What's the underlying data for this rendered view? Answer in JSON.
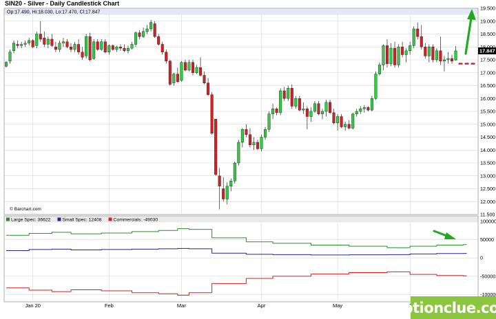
{
  "header": {
    "title": "SIN20 - Silver - Daily Candlestick Chart",
    "info": "Op:17.490, Hi:18.030, Lo:17.470, Cl:17.847",
    "credit": "© Barchart.com",
    "last_price_label": "17.847"
  },
  "legend": [
    {
      "label": "Large Spec: 36622",
      "color": "#2e8b2e"
    },
    {
      "label": "Small Spec: 12408",
      "color": "#23238f"
    },
    {
      "label": "Commercials: -49030",
      "color": "#d22222"
    }
  ],
  "watermark": "optionclue.com",
  "colors": {
    "up": "#2ecc40",
    "down": "#d42020",
    "grid": "#cfcfcf",
    "header_band": "#e4e8f5",
    "arrow": "#22a822",
    "last_price_line": "#e02020"
  },
  "chart_data": [
    {
      "type": "candlestick",
      "title": "SIN20 - Silver - Daily Candlestick Chart",
      "x_tick_labels": [
        {
          "label": "Jan 20",
          "index": 7
        },
        {
          "label": "Feb",
          "index": 27
        },
        {
          "label": "Mar",
          "index": 46
        },
        {
          "label": "Apr",
          "index": 67
        },
        {
          "label": "May",
          "index": 87
        },
        {
          "label": "J",
          "index": 106
        }
      ],
      "y_ticks": [
        "11.500",
        "12.000",
        "12.500",
        "13.000",
        "13.500",
        "14.000",
        "14.500",
        "15.000",
        "15.500",
        "16.000",
        "16.500",
        "17.000",
        "17.500",
        "18.000",
        "18.500",
        "19.000",
        "19.500"
      ],
      "ylim": [
        11.5,
        19.5
      ],
      "grid": true,
      "last_price": 17.847,
      "candles": [
        [
          17.25,
          17.45,
          17.2,
          17.4
        ],
        [
          17.45,
          17.9,
          17.35,
          17.8
        ],
        [
          17.85,
          18.25,
          17.75,
          18.15
        ],
        [
          18.1,
          18.25,
          17.95,
          18.05
        ],
        [
          18.05,
          18.2,
          17.95,
          18.1
        ],
        [
          18.1,
          18.25,
          18.0,
          18.15
        ],
        [
          18.15,
          18.35,
          18.05,
          18.25
        ],
        [
          18.25,
          18.3,
          17.95,
          18.0
        ],
        [
          18.05,
          18.6,
          17.95,
          18.5
        ],
        [
          18.5,
          19.0,
          18.2,
          18.3
        ],
        [
          18.35,
          18.6,
          18.0,
          18.1
        ],
        [
          18.1,
          18.4,
          17.95,
          18.3
        ],
        [
          18.3,
          18.5,
          18.0,
          18.05
        ],
        [
          18.0,
          18.2,
          17.8,
          17.9
        ],
        [
          17.9,
          18.25,
          17.8,
          18.15
        ],
        [
          18.15,
          18.35,
          18.0,
          18.2
        ],
        [
          18.2,
          18.3,
          17.95,
          18.0
        ],
        [
          18.0,
          18.15,
          17.8,
          17.9
        ],
        [
          17.9,
          18.2,
          17.8,
          18.1
        ],
        [
          18.1,
          18.3,
          17.7,
          17.8
        ],
        [
          17.8,
          18.0,
          17.5,
          17.6
        ],
        [
          17.65,
          18.5,
          17.55,
          18.4
        ],
        [
          18.4,
          18.55,
          17.45,
          17.5
        ],
        [
          17.55,
          18.3,
          17.5,
          18.2
        ],
        [
          18.2,
          18.3,
          17.85,
          17.9
        ],
        [
          17.9,
          18.3,
          17.85,
          18.2
        ],
        [
          18.2,
          18.3,
          17.75,
          17.8
        ],
        [
          17.8,
          18.1,
          17.7,
          18.05
        ],
        [
          18.05,
          18.1,
          17.85,
          17.9
        ],
        [
          17.9,
          18.05,
          17.8,
          18.0
        ],
        [
          18.0,
          18.1,
          17.85,
          17.95
        ],
        [
          17.95,
          18.1,
          17.8,
          17.85
        ],
        [
          17.85,
          18.05,
          17.75,
          17.95
        ],
        [
          17.95,
          18.2,
          17.9,
          18.1
        ],
        [
          18.1,
          18.6,
          18.0,
          18.55
        ],
        [
          18.55,
          18.65,
          18.3,
          18.4
        ],
        [
          18.4,
          18.75,
          18.35,
          18.6
        ],
        [
          18.6,
          18.85,
          18.5,
          18.7
        ],
        [
          18.7,
          19.05,
          18.6,
          18.95
        ],
        [
          18.9,
          19.0,
          18.35,
          18.4
        ],
        [
          18.4,
          18.5,
          18.05,
          18.1
        ],
        [
          18.1,
          18.2,
          17.7,
          17.8
        ],
        [
          17.8,
          17.9,
          17.35,
          17.45
        ],
        [
          17.45,
          17.5,
          16.5,
          16.55
        ],
        [
          16.6,
          17.0,
          16.5,
          16.95
        ],
        [
          16.95,
          17.2,
          16.6,
          16.65
        ],
        [
          16.7,
          17.45,
          16.65,
          17.4
        ],
        [
          17.4,
          17.5,
          17.05,
          17.1
        ],
        [
          17.1,
          17.5,
          17.05,
          17.4
        ],
        [
          17.4,
          17.5,
          16.9,
          17.0
        ],
        [
          17.0,
          17.3,
          16.95,
          17.2
        ],
        [
          17.2,
          17.6,
          16.85,
          16.9
        ],
        [
          16.9,
          17.05,
          16.55,
          16.6
        ],
        [
          16.6,
          16.8,
          16.1,
          16.15
        ],
        [
          16.15,
          16.25,
          14.6,
          14.65
        ],
        [
          15.2,
          15.2,
          13.0,
          13.05
        ],
        [
          13.0,
          13.3,
          11.7,
          12.6
        ],
        [
          12.5,
          12.95,
          12.0,
          12.1
        ],
        [
          12.1,
          12.75,
          11.9,
          12.6
        ],
        [
          12.6,
          12.9,
          12.4,
          12.8
        ],
        [
          12.8,
          13.55,
          12.7,
          13.5
        ],
        [
          13.5,
          14.4,
          13.4,
          14.3
        ],
        [
          14.3,
          14.85,
          14.1,
          14.8
        ],
        [
          14.8,
          15.0,
          14.5,
          14.6
        ],
        [
          14.6,
          14.85,
          14.1,
          14.2
        ],
        [
          14.2,
          14.5,
          14.0,
          14.3
        ],
        [
          14.3,
          14.4,
          14.0,
          14.05
        ],
        [
          14.05,
          14.6,
          13.95,
          14.5
        ],
        [
          14.5,
          14.9,
          14.4,
          14.8
        ],
        [
          14.8,
          15.5,
          14.7,
          15.4
        ],
        [
          15.4,
          15.8,
          15.2,
          15.6
        ],
        [
          15.6,
          15.65,
          15.35,
          15.45
        ],
        [
          15.45,
          16.4,
          15.35,
          16.3
        ],
        [
          16.3,
          16.45,
          15.9,
          16.0
        ],
        [
          16.0,
          16.5,
          15.9,
          16.4
        ],
        [
          16.4,
          16.55,
          15.6,
          15.7
        ],
        [
          15.7,
          16.1,
          15.6,
          16.0
        ],
        [
          16.0,
          16.1,
          15.5,
          15.55
        ],
        [
          15.55,
          15.85,
          15.4,
          15.6
        ],
        [
          15.6,
          15.7,
          14.8,
          15.3
        ],
        [
          15.3,
          15.65,
          15.1,
          15.5
        ],
        [
          15.5,
          15.9,
          15.45,
          15.8
        ],
        [
          15.8,
          15.9,
          15.35,
          15.4
        ],
        [
          15.4,
          15.6,
          15.2,
          15.5
        ],
        [
          15.5,
          15.95,
          15.3,
          15.85
        ],
        [
          15.85,
          15.95,
          15.4,
          15.45
        ],
        [
          15.45,
          15.6,
          15.0,
          15.05
        ],
        [
          15.05,
          15.4,
          14.75,
          15.3
        ],
        [
          15.3,
          15.4,
          14.85,
          14.9
        ],
        [
          14.9,
          15.1,
          14.75,
          15.0
        ],
        [
          15.0,
          15.15,
          14.8,
          14.85
        ],
        [
          14.85,
          15.45,
          14.8,
          15.4
        ],
        [
          15.4,
          15.6,
          15.3,
          15.5
        ],
        [
          15.5,
          15.7,
          15.4,
          15.6
        ],
        [
          15.6,
          15.75,
          15.45,
          15.65
        ],
        [
          15.65,
          15.7,
          15.5,
          15.55
        ],
        [
          15.55,
          16.1,
          15.5,
          16.0
        ],
        [
          16.0,
          17.05,
          15.95,
          16.95
        ],
        [
          16.95,
          17.4,
          16.9,
          17.3
        ],
        [
          17.3,
          18.1,
          17.1,
          18.05
        ],
        [
          18.05,
          18.3,
          17.2,
          17.35
        ],
        [
          17.35,
          18.15,
          17.25,
          17.95
        ],
        [
          17.95,
          18.2,
          17.2,
          17.3
        ],
        [
          17.3,
          18.1,
          17.2,
          18.0
        ],
        [
          18.0,
          18.2,
          17.6,
          17.7
        ],
        [
          17.7,
          17.95,
          17.4,
          17.85
        ],
        [
          17.85,
          18.2,
          17.7,
          18.05
        ],
        [
          18.05,
          18.8,
          17.95,
          18.7
        ],
        [
          18.7,
          18.95,
          18.3,
          18.4
        ],
        [
          18.4,
          18.85,
          17.9,
          18.0
        ],
        [
          18.0,
          18.15,
          17.55,
          17.65
        ],
        [
          17.65,
          18.1,
          17.4,
          18.0
        ],
        [
          18.0,
          18.1,
          17.4,
          17.5
        ],
        [
          17.5,
          17.95,
          17.4,
          17.85
        ],
        [
          17.85,
          18.4,
          17.3,
          17.45
        ],
        [
          17.45,
          17.65,
          17.05,
          17.5
        ],
        [
          17.5,
          17.8,
          17.35,
          17.55
        ],
        [
          17.55,
          17.7,
          17.35,
          17.45
        ],
        [
          17.49,
          18.03,
          17.47,
          17.847
        ]
      ],
      "annotation": "green arrow pointing up at the right edge; dashed red line at the last price"
    },
    {
      "type": "line",
      "title": "",
      "y_ticks": [
        "100000",
        "50000",
        "0",
        "-50000",
        "-100000"
      ],
      "ylim": [
        -120000,
        115000
      ],
      "grid": true,
      "series": [
        {
          "name": "Large Spec: 36622",
          "color": "#2e8b2e",
          "x": [
            0,
            6,
            12,
            17,
            25,
            33,
            40,
            45,
            48,
            54,
            63,
            70,
            80,
            90,
            100,
            106,
            113,
            120
          ],
          "values": [
            62000,
            67000,
            70000,
            66000,
            68000,
            72000,
            75000,
            80000,
            78000,
            55000,
            44000,
            40000,
            35000,
            32000,
            28000,
            32000,
            35000,
            36622
          ]
        },
        {
          "name": "Small Spec: 12408",
          "color": "#23238f",
          "x": [
            0,
            6,
            12,
            17,
            25,
            33,
            40,
            45,
            48,
            54,
            63,
            70,
            80,
            90,
            100,
            106,
            113,
            120
          ],
          "values": [
            20000,
            23000,
            24000,
            22000,
            23000,
            24000,
            25000,
            26000,
            25000,
            13000,
            10000,
            9000,
            8000,
            8500,
            9000,
            11000,
            12000,
            12408
          ]
        },
        {
          "name": "Commercials: -49030",
          "color": "#d22222",
          "x": [
            0,
            6,
            12,
            17,
            25,
            33,
            40,
            45,
            48,
            54,
            63,
            70,
            80,
            90,
            100,
            106,
            113,
            120
          ],
          "values": [
            -82000,
            -88000,
            -92000,
            -87000,
            -90000,
            -95000,
            -98000,
            -102000,
            -95000,
            -70000,
            -56000,
            -50000,
            -44000,
            -40000,
            -38000,
            -45000,
            -48000,
            -49030
          ]
        }
      ],
      "annotation": "green arrow pointing down-right"
    }
  ]
}
